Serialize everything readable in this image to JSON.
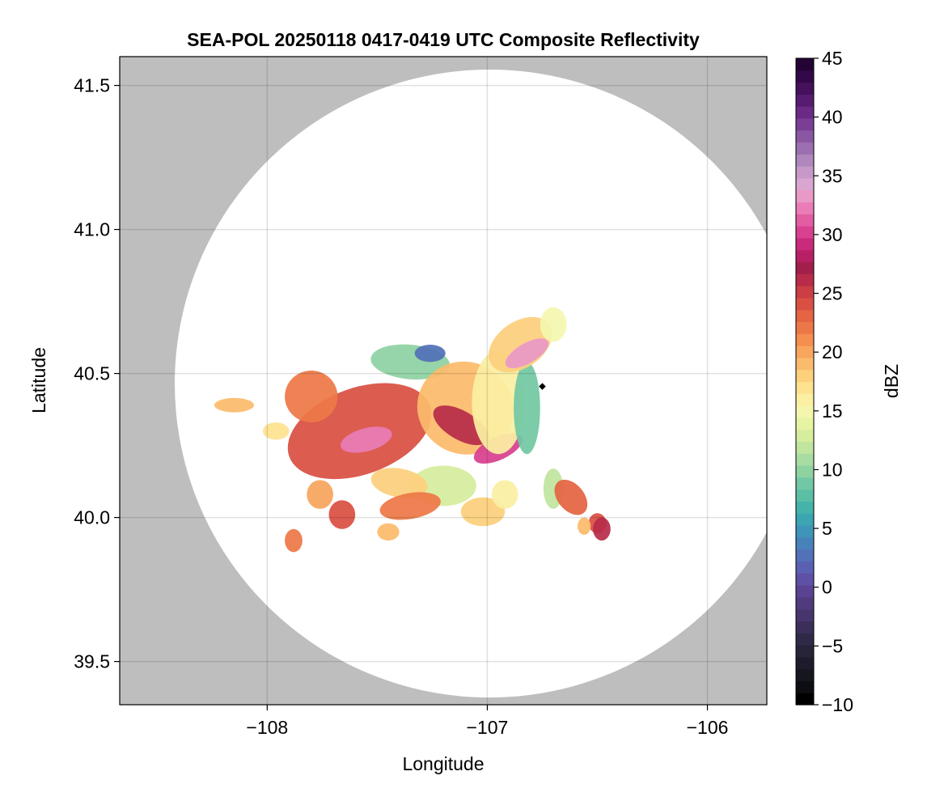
{
  "chart_data": {
    "type": "heatmap",
    "title": "SEA-POL 20250118 0417-0419 UTC Composite Reflectivity",
    "xlabel": "Longitude",
    "ylabel": "Latitude",
    "xlim": [
      -108.67,
      -105.73
    ],
    "ylim": [
      39.35,
      41.6
    ],
    "xticks": [
      -108,
      -107,
      -106
    ],
    "xtick_labels": [
      "−108",
      "−107",
      "−106"
    ],
    "yticks": [
      39.5,
      40.0,
      40.5,
      41.0,
      41.5
    ],
    "ytick_labels": [
      "39.5",
      "40.0",
      "40.5",
      "41.0",
      "41.5"
    ],
    "grid": true,
    "background_color": "#bebebe",
    "coverage_fill": "#ffffff",
    "radar": {
      "center_lon": -106.99,
      "center_lat": 40.465,
      "coverage_radius_lat_deg": 1.09,
      "coverage_radius_lon_deg": 1.43,
      "marker_lon": -106.75,
      "marker_lat": 40.455
    },
    "colorbar": {
      "label": "dBZ",
      "min": -10,
      "max": 45,
      "ticks": [
        -10,
        -5,
        0,
        5,
        10,
        15,
        20,
        25,
        30,
        35,
        40,
        45
      ],
      "tick_labels": [
        "−10",
        "−5",
        "0",
        "5",
        "10",
        "15",
        "20",
        "25",
        "30",
        "35",
        "40",
        "45"
      ],
      "colors": [
        "#000000",
        "#0d0d14",
        "#16161f",
        "#1e1c2c",
        "#272339",
        "#302948",
        "#3b2f5a",
        "#47366d",
        "#513b7f",
        "#5a4392",
        "#5e50a5",
        "#5b60b2",
        "#5271b7",
        "#4782ba",
        "#3e94b9",
        "#3ba5b2",
        "#45b3a9",
        "#5bbfa6",
        "#72c8a4",
        "#8ed2a2",
        "#a8dca2",
        "#c0e59e",
        "#d6ed9e",
        "#e8f3a4",
        "#f4f6ae",
        "#fbefa2",
        "#fde28f",
        "#fcd07d",
        "#fbbb6c",
        "#f8a55d",
        "#f48e51",
        "#ed7847",
        "#e46443",
        "#d95043",
        "#ca3e44",
        "#b82c49",
        "#a31f4b",
        "#b82065",
        "#c92a7b",
        "#d8418f",
        "#e35da3",
        "#ea7db7",
        "#ea99c6",
        "#dba5d1",
        "#c699c8",
        "#b087bd",
        "#9b6fb0",
        "#8a57a3",
        "#7a3f95",
        "#6a2a85",
        "#581b72",
        "#45105c",
        "#330848",
        "#240434"
      ]
    },
    "cells": [
      {
        "lon": -107.58,
        "lat": 40.3,
        "rlon": 0.34,
        "rlat": 0.15,
        "dbz": 24,
        "rot": -20
      },
      {
        "lon": -107.8,
        "lat": 40.42,
        "rlon": 0.12,
        "rlat": 0.09,
        "dbz": 22,
        "rot": 0
      },
      {
        "lon": -107.55,
        "lat": 40.27,
        "rlon": 0.12,
        "rlat": 0.04,
        "dbz": 32,
        "rot": -15
      },
      {
        "lon": -107.35,
        "lat": 40.54,
        "rlon": 0.18,
        "rlat": 0.06,
        "dbz": 10,
        "rot": 5
      },
      {
        "lon": -107.26,
        "lat": 40.57,
        "rlon": 0.07,
        "rlat": 0.03,
        "dbz": 3,
        "rot": 0
      },
      {
        "lon": -107.1,
        "lat": 40.38,
        "rlon": 0.22,
        "rlat": 0.16,
        "dbz": 19,
        "rot": 25
      },
      {
        "lon": -107.12,
        "lat": 40.32,
        "rlon": 0.14,
        "rlat": 0.05,
        "dbz": 26,
        "rot": 30
      },
      {
        "lon": -106.95,
        "lat": 40.24,
        "rlon": 0.12,
        "rlat": 0.04,
        "dbz": 30,
        "rot": -25
      },
      {
        "lon": -106.95,
        "lat": 40.4,
        "rlon": 0.12,
        "rlat": 0.18,
        "dbz": 16,
        "rot": 0
      },
      {
        "lon": -106.82,
        "lat": 40.38,
        "rlon": 0.06,
        "rlat": 0.16,
        "dbz": 9,
        "rot": 0
      },
      {
        "lon": -106.85,
        "lat": 40.6,
        "rlon": 0.16,
        "rlat": 0.08,
        "dbz": 18,
        "rot": -35
      },
      {
        "lon": -106.82,
        "lat": 40.57,
        "rlon": 0.11,
        "rlat": 0.035,
        "dbz": 33,
        "rot": -30
      },
      {
        "lon": -106.7,
        "lat": 40.67,
        "rlon": 0.06,
        "rlat": 0.06,
        "dbz": 15,
        "rot": 0
      },
      {
        "lon": -107.2,
        "lat": 40.11,
        "rlon": 0.15,
        "rlat": 0.07,
        "dbz": 13,
        "rot": 0
      },
      {
        "lon": -107.4,
        "lat": 40.12,
        "rlon": 0.13,
        "rlat": 0.05,
        "dbz": 18,
        "rot": 10
      },
      {
        "lon": -107.35,
        "lat": 40.04,
        "rlon": 0.14,
        "rlat": 0.045,
        "dbz": 22,
        "rot": -10
      },
      {
        "lon": -107.02,
        "lat": 40.02,
        "rlon": 0.1,
        "rlat": 0.05,
        "dbz": 18,
        "rot": 0
      },
      {
        "lon": -106.92,
        "lat": 40.08,
        "rlon": 0.06,
        "rlat": 0.05,
        "dbz": 16,
        "rot": 0
      },
      {
        "lon": -106.7,
        "lat": 40.1,
        "rlon": 0.045,
        "rlat": 0.07,
        "dbz": 12,
        "rot": 0
      },
      {
        "lon": -106.62,
        "lat": 40.07,
        "rlon": 0.06,
        "rlat": 0.07,
        "dbz": 23,
        "rot": -40
      },
      {
        "lon": -106.5,
        "lat": 39.98,
        "rlon": 0.04,
        "rlat": 0.035,
        "dbz": 24,
        "rot": 0
      },
      {
        "lon": -106.48,
        "lat": 39.96,
        "rlon": 0.04,
        "rlat": 0.04,
        "dbz": 26,
        "rot": 0
      },
      {
        "lon": -106.56,
        "lat": 39.97,
        "rlon": 0.03,
        "rlat": 0.03,
        "dbz": 19,
        "rot": 0
      },
      {
        "lon": -107.76,
        "lat": 40.08,
        "rlon": 0.06,
        "rlat": 0.05,
        "dbz": 20,
        "rot": 0
      },
      {
        "lon": -107.66,
        "lat": 40.01,
        "rlon": 0.06,
        "rlat": 0.05,
        "dbz": 24,
        "rot": 0
      },
      {
        "lon": -107.88,
        "lat": 39.92,
        "rlon": 0.04,
        "rlat": 0.04,
        "dbz": 22,
        "rot": 0
      },
      {
        "lon": -107.45,
        "lat": 39.95,
        "rlon": 0.05,
        "rlat": 0.03,
        "dbz": 19,
        "rot": 0
      },
      {
        "lon": -108.15,
        "lat": 40.39,
        "rlon": 0.09,
        "rlat": 0.025,
        "dbz": 19,
        "rot": 0
      },
      {
        "lon": -107.96,
        "lat": 40.3,
        "rlon": 0.06,
        "rlat": 0.03,
        "dbz": 17,
        "rot": 0
      }
    ]
  }
}
